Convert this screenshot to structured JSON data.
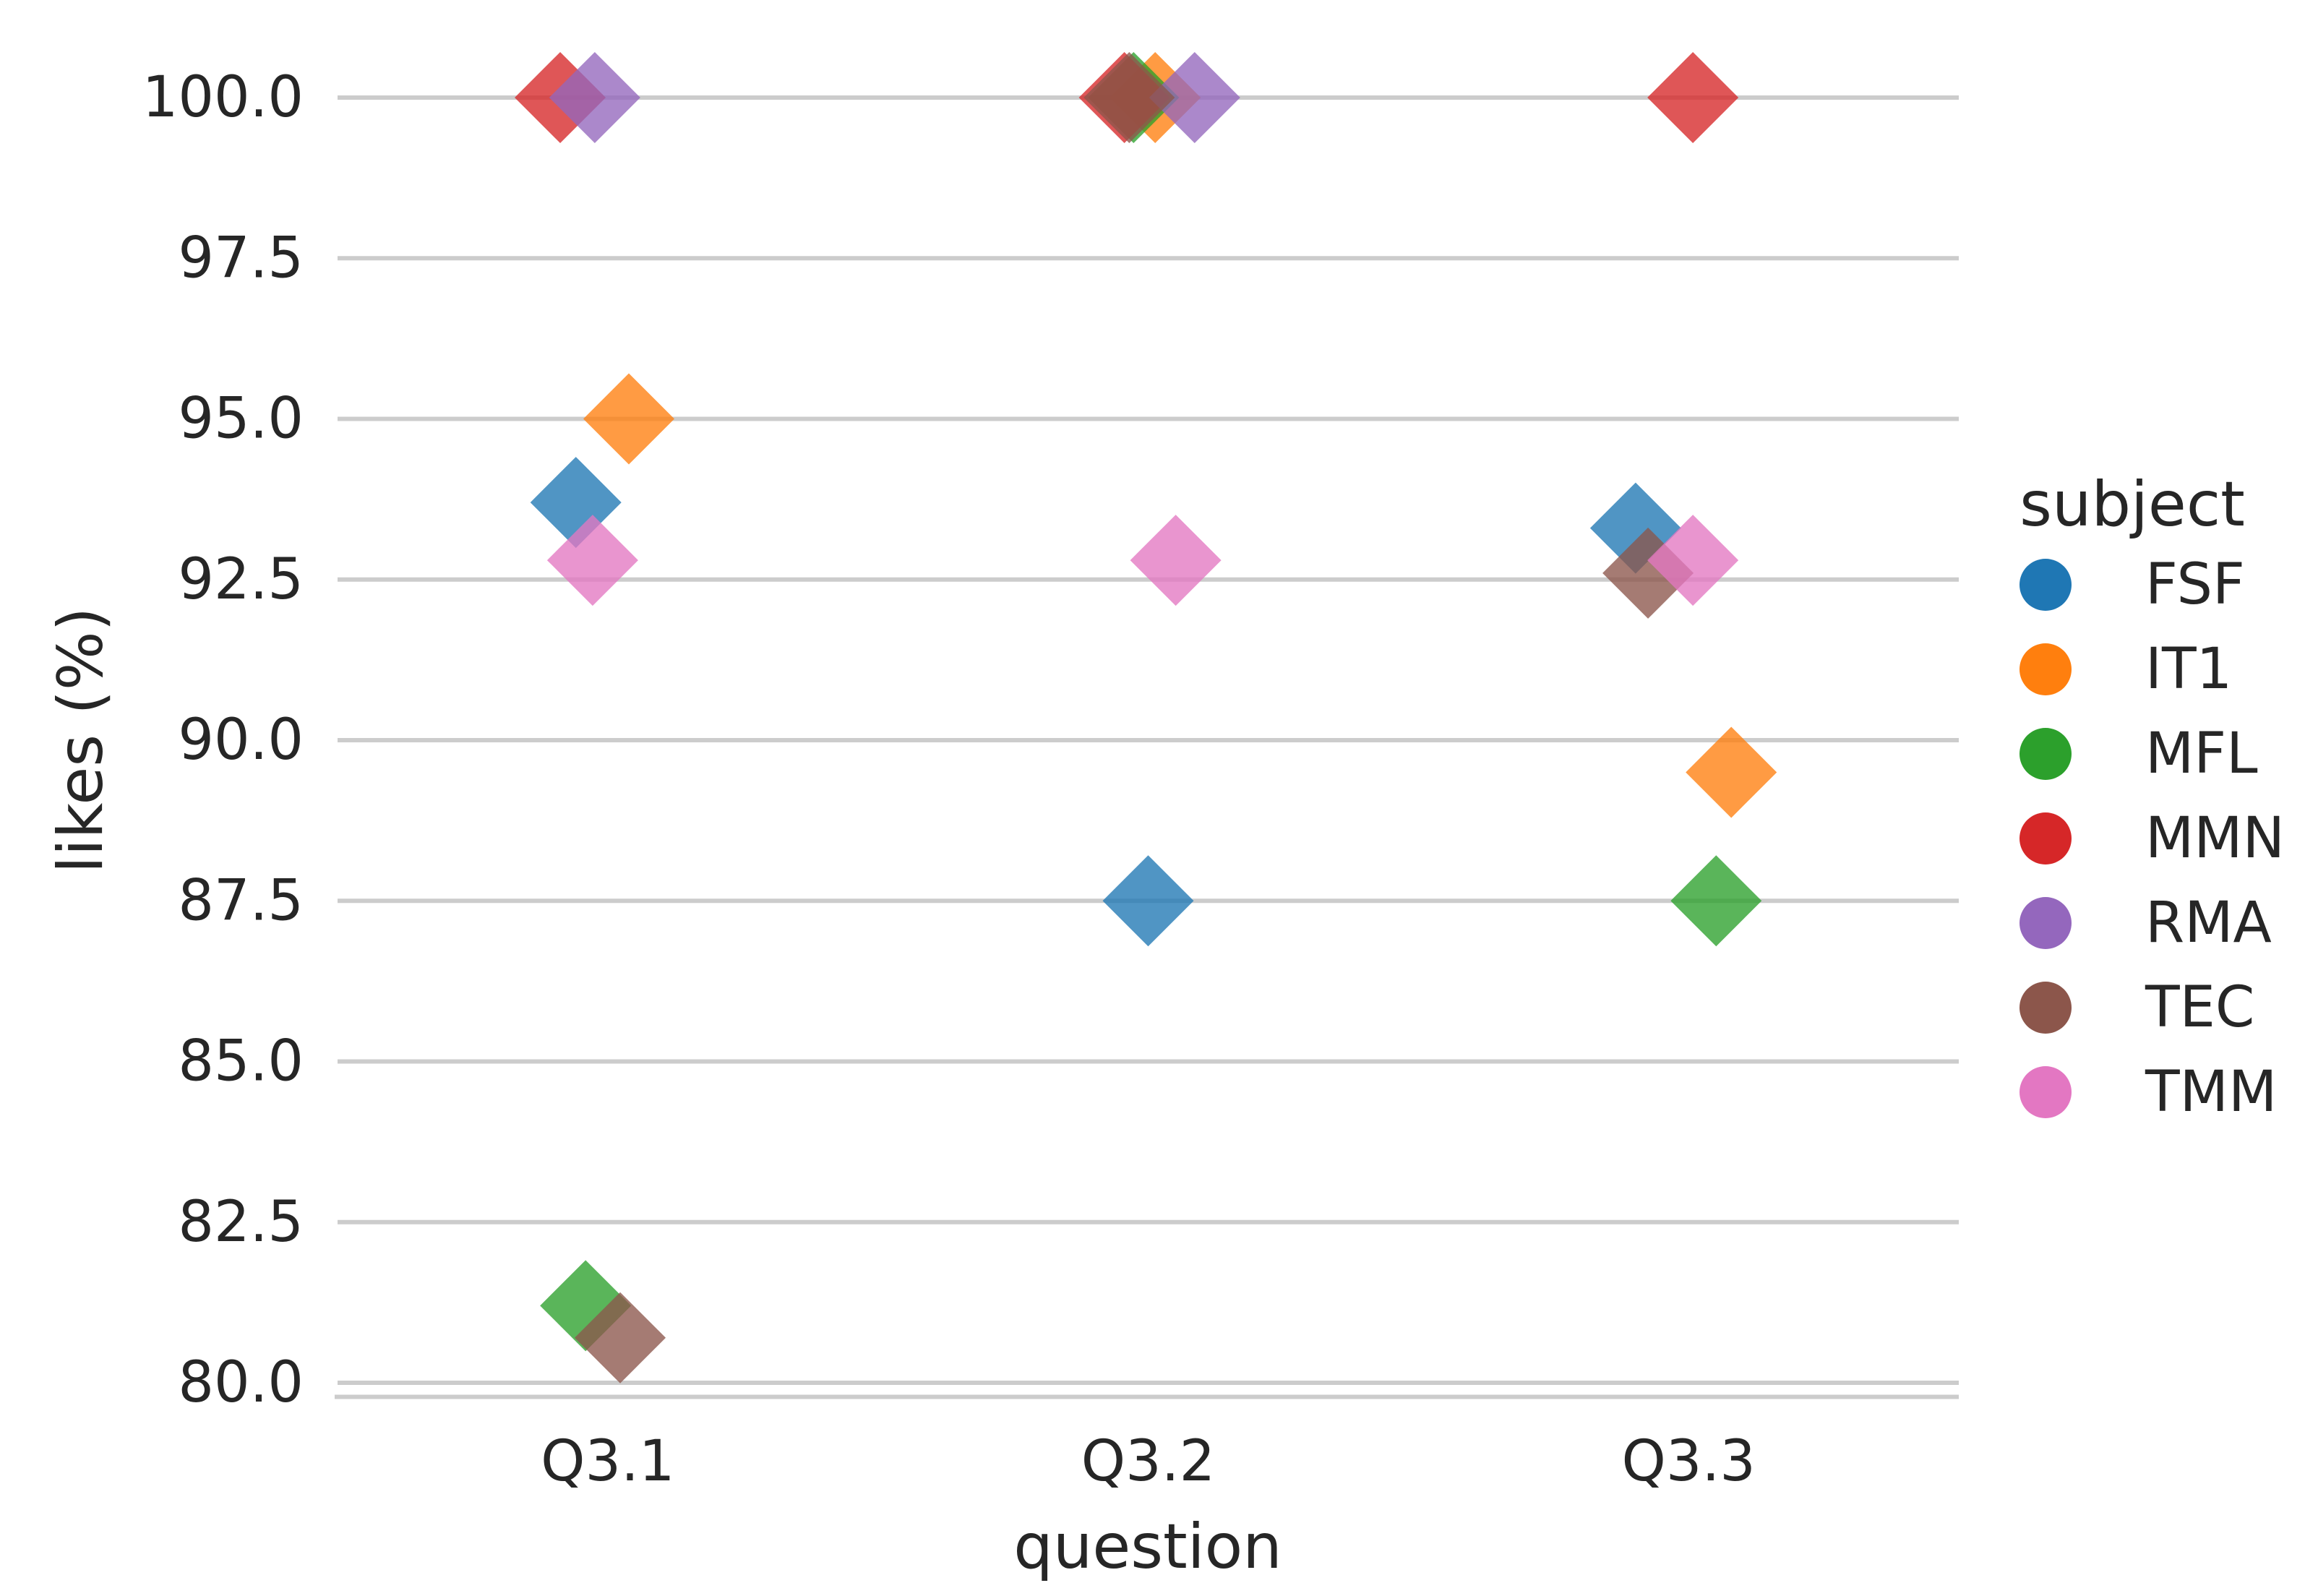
{
  "chart_data": {
    "type": "scatter",
    "title": "",
    "xlabel": "question",
    "ylabel": "likes (%)",
    "categories": [
      "Q3.1",
      "Q3.2",
      "Q3.3"
    ],
    "y_ticks": [
      80.0,
      82.5,
      85.0,
      87.5,
      90.0,
      92.5,
      95.0,
      97.5,
      100.0
    ],
    "ylim": [
      79.78,
      100.8
    ],
    "grid": true,
    "marker": "diamond",
    "legend": {
      "title": "subject",
      "position": "right"
    },
    "series": [
      {
        "name": "FSF",
        "color": "#1f77b4",
        "points": [
          {
            "x": "Q3.1",
            "y": 93.7,
            "jx": -0.059
          },
          {
            "x": "Q3.2",
            "y": 87.5,
            "jx": 0.0
          },
          {
            "x": "Q3.3",
            "y": 93.3,
            "jx": -0.098
          }
        ]
      },
      {
        "name": "IT1",
        "color": "#ff7f0e",
        "points": [
          {
            "x": "Q3.1",
            "y": 95.0,
            "jx": 0.039
          },
          {
            "x": "Q3.2",
            "y": 100.0,
            "jx": 0.013
          },
          {
            "x": "Q3.3",
            "y": 89.5,
            "jx": 0.079
          }
        ]
      },
      {
        "name": "MFL",
        "color": "#2ca02c",
        "points": [
          {
            "x": "Q3.1",
            "y": 81.2,
            "jx": -0.041
          },
          {
            "x": "Q3.2",
            "y": 100.0,
            "jx": -0.027
          },
          {
            "x": "Q3.3",
            "y": 87.5,
            "jx": 0.051
          }
        ]
      },
      {
        "name": "MMN",
        "color": "#d62728",
        "points": [
          {
            "x": "Q3.1",
            "y": 100.0,
            "jx": -0.088
          },
          {
            "x": "Q3.2",
            "y": 100.0,
            "jx": -0.044
          },
          {
            "x": "Q3.3",
            "y": 100.0,
            "jx": 0.008
          }
        ]
      },
      {
        "name": "RMA",
        "color": "#9467bd",
        "points": [
          {
            "x": "Q3.1",
            "y": 100.0,
            "jx": -0.024
          },
          {
            "x": "Q3.2",
            "y": 100.0,
            "jx": 0.086
          }
        ]
      },
      {
        "name": "TEC",
        "color": "#8c564b",
        "points": [
          {
            "x": "Q3.1",
            "y": 80.7,
            "jx": 0.023
          },
          {
            "x": "Q3.2",
            "y": 100.0,
            "jx": -0.035
          },
          {
            "x": "Q3.3",
            "y": 92.6,
            "jx": -0.075
          }
        ]
      },
      {
        "name": "TMM",
        "color": "#e377c2",
        "points": [
          {
            "x": "Q3.1",
            "y": 92.8,
            "jx": -0.028
          },
          {
            "x": "Q3.2",
            "y": 92.8,
            "jx": 0.051
          },
          {
            "x": "Q3.3",
            "y": 92.8,
            "jx": 0.008
          }
        ]
      }
    ],
    "style": {
      "grid_color": "#cccccc",
      "text_color": "#262626",
      "background": "#ffffff",
      "marker_opacity": 0.78
    }
  }
}
